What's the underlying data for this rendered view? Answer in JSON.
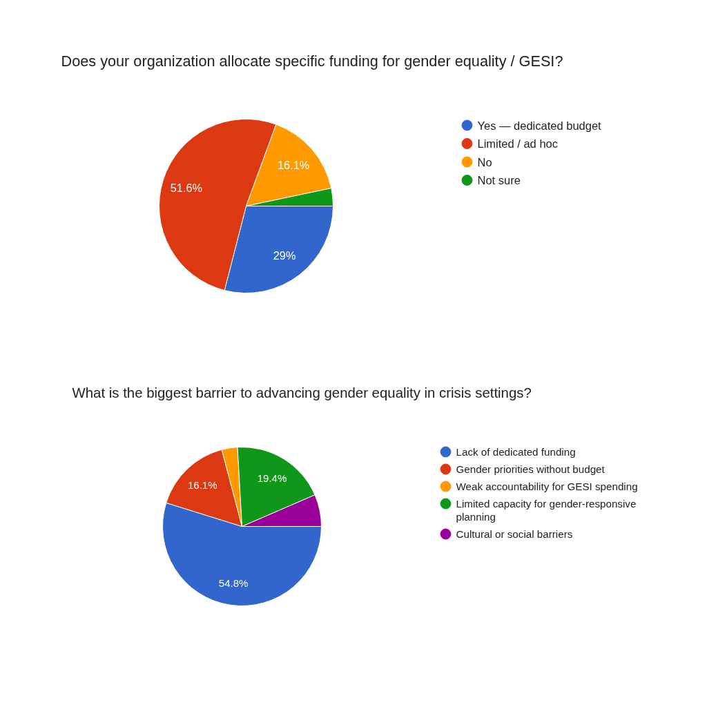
{
  "chart_data": [
    {
      "type": "pie",
      "title": "Does your organization allocate specific funding for gender equality / GESI?",
      "categories": [
        "Yes — dedicated budget",
        "Limited / ad hoc",
        "No",
        "Not sure"
      ],
      "values": [
        29,
        51.6,
        16.1,
        3.3
      ],
      "colors": [
        "#3366cc",
        "#dc3912",
        "#ff9900",
        "#109618"
      ],
      "value_labels": [
        "29%",
        "51.6%",
        "16.1%",
        null
      ],
      "legend": "right"
    },
    {
      "type": "pie",
      "title": "What is the biggest barrier to advancing gender equality in crisis settings?",
      "categories": [
        "Lack of dedicated funding",
        "Gender priorities without budget",
        "Weak accountability for GESI spending",
        "Limited capacity for gender-responsive planning",
        "Cultural or social barriers"
      ],
      "values": [
        54.8,
        16.1,
        3.2,
        19.4,
        6.5
      ],
      "colors": [
        "#3366cc",
        "#dc3912",
        "#ff9900",
        "#109618",
        "#990099"
      ],
      "value_labels": [
        "54.8%",
        "16.1%",
        null,
        "19.4%",
        null
      ],
      "legend": "right"
    }
  ]
}
